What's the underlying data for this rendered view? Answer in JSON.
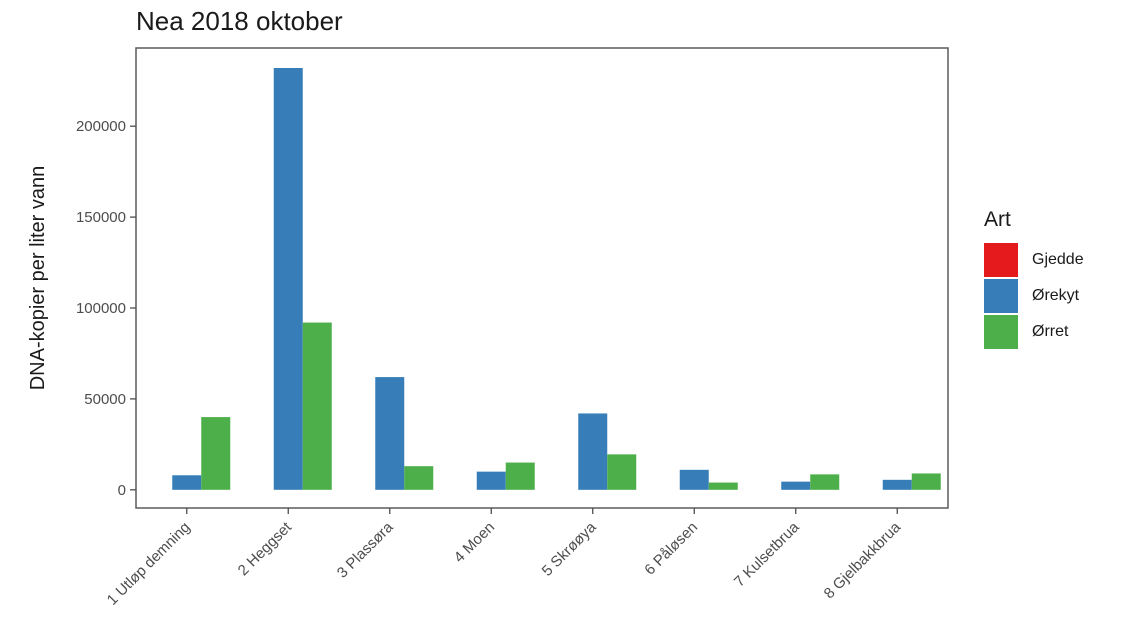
{
  "chart_data": {
    "type": "bar",
    "title": "Nea 2018 oktober",
    "xlabel": "",
    "ylabel": "DNA-kopier per liter vann",
    "categories": [
      "1 Utløp demning",
      "2 Heggset",
      "3 Plassøra",
      "4 Moen",
      "5 Skrøøya",
      "6 Påløsen",
      "7 Kulsetbrua",
      "8 Gjelbakkbrua"
    ],
    "yticks": [
      0,
      50000,
      100000,
      150000,
      200000
    ],
    "ylim": [
      -10000,
      243000
    ],
    "grid": false,
    "legend_title": "Art",
    "legend_position": "right",
    "series": [
      {
        "name": "Gjedde",
        "color": "#e41a1c",
        "values": [
          0,
          0,
          0,
          0,
          0,
          0,
          0,
          0
        ]
      },
      {
        "name": "Ørekyt",
        "color": "#377eb8",
        "values": [
          8000,
          232000,
          62000,
          10000,
          42000,
          11000,
          4500,
          5500
        ]
      },
      {
        "name": "Ørret",
        "color": "#4daf4a",
        "values": [
          40000,
          92000,
          13000,
          15000,
          19500,
          4000,
          8500,
          9000
        ]
      }
    ]
  }
}
